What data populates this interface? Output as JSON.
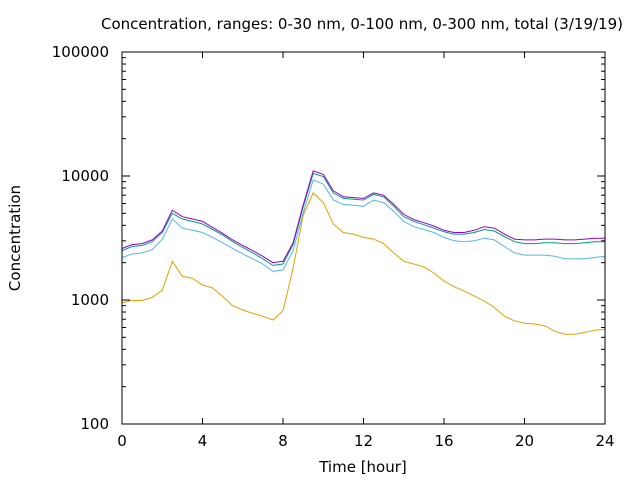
{
  "chart_data": {
    "type": "line",
    "title": "Concentration, ranges: 0-30 nm, 0-100 nm, 0-300 nm, total (3/19/19)",
    "xlabel": "Time [hour]",
    "ylabel": "Concentration",
    "xlim": [
      0,
      24
    ],
    "ylim": [
      100,
      100000
    ],
    "yscale": "log",
    "grid": false,
    "legend": "none",
    "x_ticks": [
      0,
      4,
      8,
      12,
      16,
      20,
      24
    ],
    "x_tick_labels": [
      "0",
      "4",
      "8",
      "12",
      "16",
      "20",
      "24"
    ],
    "y_ticks": [
      100,
      1000,
      10000,
      100000
    ],
    "y_tick_labels": [
      "100",
      "1000",
      "10000",
      "100000"
    ],
    "x": [
      0,
      0.5,
      1,
      1.5,
      2,
      2.5,
      3,
      3.5,
      4,
      4.5,
      5,
      5.5,
      6,
      6.5,
      7,
      7.5,
      8,
      8.5,
      9,
      9.5,
      10,
      10.5,
      11,
      11.5,
      12,
      12.5,
      13,
      13.5,
      14,
      14.5,
      15,
      15.5,
      16,
      16.5,
      17,
      17.5,
      18,
      18.5,
      19,
      19.5,
      20,
      20.5,
      21,
      21.5,
      22,
      22.5,
      23,
      23.5,
      24
    ],
    "series": [
      {
        "color": "#e5a000",
        "values": [
          950,
          990,
          990,
          1050,
          1200,
          2050,
          1550,
          1500,
          1320,
          1250,
          1070,
          900,
          830,
          780,
          740,
          690,
          820,
          1800,
          4800,
          7300,
          6100,
          4100,
          3500,
          3400,
          3200,
          3100,
          2850,
          2400,
          2050,
          1950,
          1850,
          1650,
          1420,
          1280,
          1180,
          1080,
          980,
          870,
          740,
          680,
          650,
          640,
          620,
          560,
          530,
          530,
          550,
          570,
          580
        ]
      },
      {
        "color": "#56b4e9",
        "values": [
          2200,
          2350,
          2400,
          2550,
          3100,
          4500,
          3800,
          3650,
          3500,
          3200,
          2900,
          2600,
          2350,
          2150,
          1950,
          1700,
          1750,
          2500,
          5000,
          9300,
          8600,
          6400,
          5900,
          5800,
          5700,
          6400,
          6100,
          5200,
          4300,
          3900,
          3700,
          3500,
          3200,
          3000,
          2950,
          3000,
          3150,
          3050,
          2700,
          2400,
          2300,
          2300,
          2300,
          2250,
          2150,
          2150,
          2150,
          2200,
          2250
        ]
      },
      {
        "color": "#009e73",
        "values": [
          2500,
          2700,
          2750,
          2950,
          3500,
          5000,
          4500,
          4300,
          4100,
          3700,
          3350,
          2950,
          2650,
          2400,
          2150,
          1900,
          1950,
          2800,
          5600,
          10500,
          9900,
          7300,
          6600,
          6500,
          6400,
          7100,
          6800,
          5700,
          4700,
          4300,
          4050,
          3800,
          3550,
          3400,
          3400,
          3500,
          3700,
          3600,
          3250,
          2950,
          2850,
          2850,
          2900,
          2900,
          2850,
          2850,
          2900,
          2950,
          2950
        ]
      },
      {
        "color": "#9400d3",
        "values": [
          2600,
          2800,
          2850,
          3050,
          3600,
          5300,
          4700,
          4500,
          4300,
          3850,
          3450,
          3050,
          2750,
          2500,
          2250,
          2000,
          2050,
          2900,
          5800,
          11000,
          10300,
          7600,
          6800,
          6700,
          6600,
          7300,
          7000,
          5900,
          4900,
          4450,
          4200,
          3950,
          3650,
          3500,
          3500,
          3650,
          3900,
          3800,
          3400,
          3100,
          3050,
          3050,
          3100,
          3100,
          3050,
          3050,
          3100,
          3150,
          3150
        ]
      }
    ]
  }
}
